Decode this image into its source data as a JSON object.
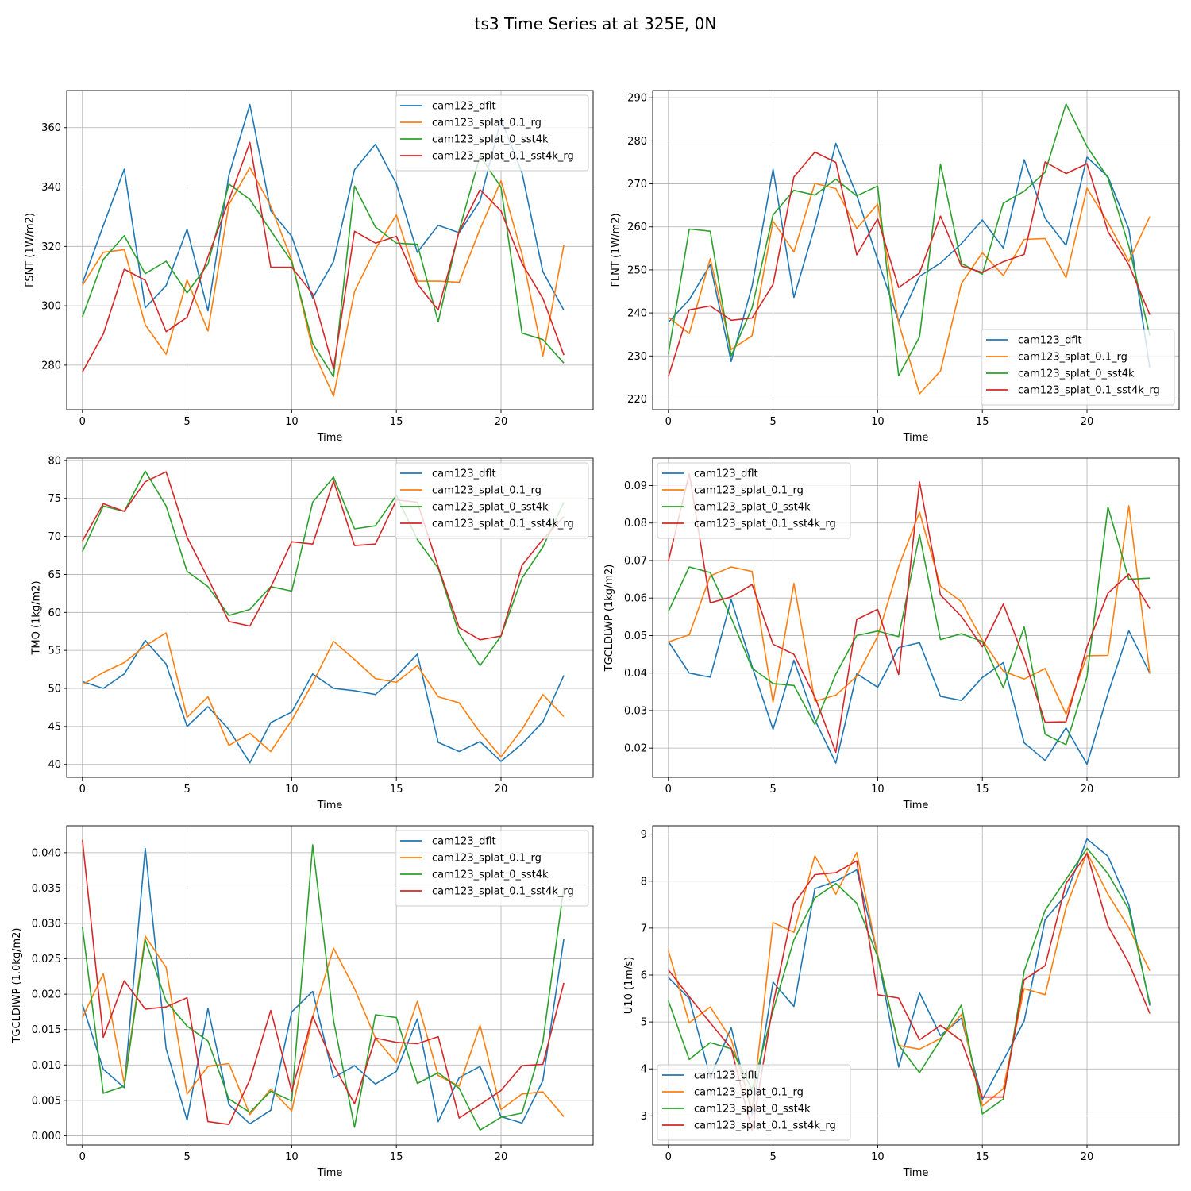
{
  "title": "ts3 Time Series at at 325E, 0N",
  "colors": {
    "cam123_dflt": "#1f77b4",
    "cam123_splat_0.1_rg": "#ff7f0e",
    "cam123_splat_0_sst4k": "#2ca02c",
    "cam123_splat_0.1_sst4k_rg": "#d62728"
  },
  "chart_data": [
    {
      "type": "line",
      "xlabel": "Time",
      "ylabel": "FSNT (1W/m2)",
      "x": [
        0,
        1,
        2,
        3,
        4,
        5,
        6,
        7,
        8,
        9,
        10,
        11,
        12,
        13,
        14,
        15,
        16,
        17,
        18,
        19,
        20,
        21,
        22,
        23
      ],
      "xlim": [
        -0.75,
        24.4
      ],
      "ylim": [
        265.0,
        372.5
      ],
      "xticks": [
        0,
        5,
        10,
        15,
        20
      ],
      "xtick_labels": [
        "0",
        "5",
        "10",
        "15",
        "20"
      ],
      "yticks": [
        280,
        300,
        320,
        340,
        360
      ],
      "ytick_labels": [
        "280",
        "300",
        "320",
        "340",
        "360"
      ],
      "grid": true,
      "legend_position": "top-right",
      "series": [
        {
          "name": "cam123_dflt",
          "values": [
            307.6,
            327.0,
            346.0,
            299.3,
            306.8,
            325.8,
            298.3,
            344.0,
            367.8,
            332.0,
            323.4,
            302.6,
            314.9,
            345.8,
            354.4,
            341.1,
            318.0,
            327.1,
            324.6,
            335.3,
            362.8,
            344.8,
            311.5,
            298.5
          ]
        },
        {
          "name": "cam123_splat_0.1_rg",
          "values": [
            306.9,
            318.0,
            318.9,
            293.6,
            283.7,
            308.7,
            291.5,
            334.1,
            346.6,
            333.6,
            315.4,
            285.1,
            269.6,
            304.8,
            319.1,
            330.6,
            308.3,
            308.3,
            307.9,
            325.9,
            342.1,
            317.4,
            283.1,
            320.4
          ]
        },
        {
          "name": "cam123_splat_0_sst4k",
          "values": [
            296.3,
            315.6,
            323.6,
            310.8,
            315.0,
            304.3,
            314.0,
            341.0,
            335.8,
            325.3,
            314.9,
            287.3,
            276.1,
            340.3,
            326.5,
            321.1,
            320.7,
            294.6,
            325.4,
            350.5,
            339.9,
            290.8,
            288.6,
            280.7
          ]
        },
        {
          "name": "cam123_splat_0.1_sst4k_rg",
          "values": [
            277.7,
            290.5,
            312.3,
            308.6,
            291.3,
            296.1,
            316.5,
            335.5,
            355.0,
            313.0,
            313.0,
            304.0,
            278.8,
            325.1,
            321.1,
            323.4,
            307.3,
            298.6,
            325.0,
            339.1,
            331.9,
            314.3,
            302.5,
            283.4
          ]
        }
      ]
    },
    {
      "type": "line",
      "xlabel": "Time",
      "ylabel": "FLNT (1W/m2)",
      "x": [
        0,
        1,
        2,
        3,
        4,
        5,
        6,
        7,
        8,
        9,
        10,
        11,
        12,
        13,
        14,
        15,
        16,
        17,
        18,
        19,
        20,
        21,
        22,
        23
      ],
      "xlim": [
        -0.75,
        24.4
      ],
      "ylim": [
        217.5,
        291.7
      ],
      "xticks": [
        0,
        5,
        10,
        15,
        20
      ],
      "xtick_labels": [
        "0",
        "5",
        "10",
        "15",
        "20"
      ],
      "yticks": [
        220,
        230,
        240,
        250,
        260,
        270,
        280,
        290
      ],
      "ytick_labels": [
        "220",
        "230",
        "240",
        "250",
        "260",
        "270",
        "280",
        "290"
      ],
      "grid": true,
      "legend_position": "bottom-right",
      "series": [
        {
          "name": "cam123_dflt",
          "values": [
            237.8,
            243.1,
            251.2,
            228.7,
            246.2,
            273.4,
            243.6,
            260.2,
            279.4,
            267.4,
            252.3,
            238.0,
            248.5,
            251.6,
            256.1,
            261.6,
            255.1,
            275.6,
            262.0,
            255.7,
            276.2,
            271.7,
            259.5,
            227.2
          ]
        },
        {
          "name": "cam123_splat_0.1_rg",
          "values": [
            239.0,
            235.2,
            252.6,
            231.5,
            234.7,
            261.3,
            254.2,
            270.1,
            268.9,
            259.6,
            265.3,
            237.7,
            221.2,
            226.5,
            246.8,
            254.0,
            248.7,
            257.1,
            257.3,
            248.2,
            269.0,
            261.0,
            252.0,
            262.4
          ]
        },
        {
          "name": "cam123_splat_0_sst4k",
          "values": [
            230.5,
            259.5,
            259.0,
            230.0,
            241.2,
            262.8,
            268.5,
            267.4,
            271.1,
            267.2,
            269.5,
            225.4,
            234.4,
            274.6,
            251.5,
            249.0,
            265.5,
            268.3,
            272.7,
            288.6,
            278.7,
            271.4,
            255.5,
            234.7
          ]
        },
        {
          "name": "cam123_splat_0.1_sst4k_rg",
          "values": [
            225.2,
            240.7,
            241.6,
            238.3,
            238.8,
            246.6,
            271.6,
            277.4,
            275.0,
            253.5,
            261.9,
            245.9,
            249.3,
            262.5,
            250.9,
            249.4,
            251.9,
            253.6,
            275.1,
            272.4,
            274.7,
            258.9,
            251.2,
            239.6
          ]
        }
      ]
    },
    {
      "type": "line",
      "xlabel": "Time",
      "ylabel": "TMQ (1kg/m2)",
      "x": [
        0,
        1,
        2,
        3,
        4,
        5,
        6,
        7,
        8,
        9,
        10,
        11,
        12,
        13,
        14,
        15,
        16,
        17,
        18,
        19,
        20,
        21,
        22,
        23
      ],
      "xlim": [
        -0.75,
        24.4
      ],
      "ylim": [
        38.3,
        80.3
      ],
      "xticks": [
        0,
        5,
        10,
        15,
        20
      ],
      "xtick_labels": [
        "0",
        "5",
        "10",
        "15",
        "20"
      ],
      "yticks": [
        40,
        45,
        50,
        55,
        60,
        65,
        70,
        75,
        80
      ],
      "ytick_labels": [
        "40",
        "45",
        "50",
        "55",
        "60",
        "65",
        "70",
        "75",
        "80"
      ],
      "grid": true,
      "legend_position": "top-right",
      "series": [
        {
          "name": "cam123_dflt",
          "values": [
            50.9,
            50.0,
            51.9,
            56.3,
            53.2,
            45.0,
            47.6,
            44.6,
            40.2,
            45.5,
            46.9,
            51.9,
            50.0,
            49.7,
            49.2,
            51.6,
            54.5,
            42.9,
            41.7,
            43.0,
            40.4,
            42.7,
            45.6,
            51.7
          ]
        },
        {
          "name": "cam123_splat_0.1_rg",
          "values": [
            50.5,
            52.1,
            53.4,
            55.6,
            57.3,
            46.2,
            48.9,
            42.5,
            44.1,
            41.7,
            45.8,
            50.7,
            56.2,
            53.8,
            51.3,
            50.8,
            53.0,
            48.9,
            48.1,
            44.2,
            41.0,
            44.6,
            49.2,
            46.3
          ]
        },
        {
          "name": "cam123_splat_0_sst4k",
          "values": [
            68.0,
            74.0,
            73.3,
            78.6,
            74.0,
            65.4,
            63.4,
            59.6,
            60.4,
            63.4,
            62.8,
            74.5,
            77.8,
            71.0,
            71.4,
            75.4,
            69.6,
            65.8,
            57.2,
            53.0,
            56.9,
            64.5,
            68.6,
            74.5
          ]
        },
        {
          "name": "cam123_splat_0.1_sst4k_rg",
          "values": [
            69.4,
            74.3,
            73.3,
            77.2,
            78.5,
            69.9,
            64.5,
            58.8,
            58.2,
            63.3,
            69.3,
            69.0,
            77.3,
            68.8,
            69.0,
            74.8,
            74.5,
            66.0,
            58.0,
            56.4,
            56.9,
            66.2,
            69.6,
            72.6
          ]
        }
      ]
    },
    {
      "type": "line",
      "xlabel": "Time",
      "ylabel": "TGCLDLWP (1kg/m2)",
      "x": [
        0,
        1,
        2,
        3,
        4,
        5,
        6,
        7,
        8,
        9,
        10,
        11,
        12,
        13,
        14,
        15,
        16,
        17,
        18,
        19,
        20,
        21,
        22,
        23
      ],
      "xlim": [
        -0.75,
        24.4
      ],
      "ylim": [
        0.0122,
        0.0973
      ],
      "xticks": [
        0,
        5,
        10,
        15,
        20
      ],
      "xtick_labels": [
        "0",
        "5",
        "10",
        "15",
        "20"
      ],
      "yticks": [
        0.02,
        0.03,
        0.04,
        0.05,
        0.06,
        0.07,
        0.08,
        0.09
      ],
      "ytick_labels": [
        "0.02",
        "0.03",
        "0.04",
        "0.05",
        "0.06",
        "0.07",
        "0.08",
        "0.09"
      ],
      "grid": true,
      "legend_position": "top-left",
      "series": [
        {
          "name": "cam123_dflt",
          "values": [
            0.0484,
            0.04,
            0.0389,
            0.0596,
            0.0418,
            0.025,
            0.0434,
            0.0275,
            0.016,
            0.0398,
            0.0362,
            0.0468,
            0.0481,
            0.0338,
            0.0327,
            0.0388,
            0.0428,
            0.0214,
            0.0167,
            0.0254,
            0.0157,
            0.0345,
            0.0513,
            0.04
          ]
        },
        {
          "name": "cam123_splat_0.1_rg",
          "values": [
            0.0483,
            0.0502,
            0.0659,
            0.0683,
            0.0671,
            0.0322,
            0.0639,
            0.0325,
            0.0341,
            0.0391,
            0.0498,
            0.0684,
            0.0829,
            0.0632,
            0.059,
            0.0488,
            0.0405,
            0.0384,
            0.0412,
            0.029,
            0.0446,
            0.0447,
            0.0846,
            0.0398
          ]
        },
        {
          "name": "cam123_splat_0_sst4k",
          "values": [
            0.0564,
            0.0683,
            0.0668,
            0.0547,
            0.0413,
            0.0372,
            0.0367,
            0.0263,
            0.0397,
            0.05,
            0.0512,
            0.0497,
            0.0769,
            0.0489,
            0.0505,
            0.0484,
            0.0361,
            0.0523,
            0.0237,
            0.0209,
            0.039,
            0.0843,
            0.065,
            0.0653
          ]
        },
        {
          "name": "cam123_splat_0.1_sst4k_rg",
          "values": [
            0.0698,
            0.0932,
            0.0587,
            0.0603,
            0.0636,
            0.0477,
            0.045,
            0.0336,
            0.0189,
            0.0543,
            0.057,
            0.0396,
            0.091,
            0.0608,
            0.0551,
            0.047,
            0.0584,
            0.0439,
            0.0269,
            0.027,
            0.047,
            0.0613,
            0.0664,
            0.0572
          ]
        }
      ]
    },
    {
      "type": "line",
      "xlabel": "Time",
      "ylabel": "TGCLDIWP (1.0kg/m2)",
      "x": [
        0,
        1,
        2,
        3,
        4,
        5,
        6,
        7,
        8,
        9,
        10,
        11,
        12,
        13,
        14,
        15,
        16,
        17,
        18,
        19,
        20,
        21,
        22,
        23
      ],
      "xlim": [
        -0.75,
        24.4
      ],
      "ylim": [
        -0.0013,
        0.0438
      ],
      "xticks": [
        0,
        5,
        10,
        15,
        20
      ],
      "xtick_labels": [
        "0",
        "5",
        "10",
        "15",
        "20"
      ],
      "yticks": [
        0.0,
        0.005,
        0.01,
        0.015,
        0.02,
        0.025,
        0.03,
        0.035,
        0.04
      ],
      "ytick_labels": [
        "0.000",
        "0.005",
        "0.010",
        "0.015",
        "0.020",
        "0.025",
        "0.030",
        "0.035",
        "0.040"
      ],
      "grid": true,
      "legend_position": "top-right",
      "series": [
        {
          "name": "cam123_dflt",
          "values": [
            0.0185,
            0.0094,
            0.0068,
            0.0406,
            0.0123,
            0.0022,
            0.018,
            0.0044,
            0.0017,
            0.0036,
            0.0175,
            0.0204,
            0.0082,
            0.0099,
            0.0073,
            0.0091,
            0.0165,
            0.002,
            0.0082,
            0.0098,
            0.0027,
            0.0018,
            0.0078,
            0.0278
          ]
        },
        {
          "name": "cam123_splat_0.1_rg",
          "values": [
            0.0167,
            0.0229,
            0.0074,
            0.0282,
            0.0238,
            0.0059,
            0.0098,
            0.0102,
            0.003,
            0.0066,
            0.0035,
            0.0168,
            0.0265,
            0.0208,
            0.0138,
            0.0103,
            0.019,
            0.0085,
            0.007,
            0.0156,
            0.0037,
            0.0059,
            0.0062,
            0.0027
          ]
        },
        {
          "name": "cam123_splat_0_sst4k",
          "values": [
            0.0295,
            0.006,
            0.007,
            0.0277,
            0.019,
            0.0155,
            0.0134,
            0.0052,
            0.0033,
            0.0063,
            0.0049,
            0.0411,
            0.0163,
            0.0012,
            0.0171,
            0.0167,
            0.0074,
            0.0089,
            0.0067,
            0.0008,
            0.0026,
            0.0032,
            0.0133,
            0.0351
          ]
        },
        {
          "name": "cam123_splat_0.1_sst4k_rg",
          "values": [
            0.0418,
            0.0139,
            0.0219,
            0.0179,
            0.0182,
            0.0195,
            0.002,
            0.0016,
            0.0079,
            0.0177,
            0.0063,
            0.0169,
            0.01,
            0.0045,
            0.0138,
            0.0132,
            0.013,
            0.014,
            0.0025,
            0.0044,
            0.0064,
            0.0099,
            0.0101,
            0.0216
          ]
        }
      ]
    },
    {
      "type": "line",
      "xlabel": "Time",
      "ylabel": "U10 (1m/s)",
      "x": [
        0,
        1,
        2,
        3,
        4,
        5,
        6,
        7,
        8,
        9,
        10,
        11,
        12,
        13,
        14,
        15,
        16,
        17,
        18,
        19,
        20,
        21,
        22,
        23
      ],
      "xlim": [
        -0.75,
        24.4
      ],
      "ylim": [
        2.38,
        9.18
      ],
      "xticks": [
        0,
        5,
        10,
        15,
        20
      ],
      "xtick_labels": [
        "0",
        "5",
        "10",
        "15",
        "20"
      ],
      "yticks": [
        3,
        4,
        5,
        6,
        7,
        8,
        9
      ],
      "ytick_labels": [
        "3",
        "4",
        "5",
        "6",
        "7",
        "8",
        "9"
      ],
      "grid": true,
      "legend_position": "bottom-left",
      "series": [
        {
          "name": "cam123_dflt",
          "values": [
            5.95,
            5.5,
            3.82,
            4.88,
            3.02,
            5.85,
            5.33,
            7.84,
            8.0,
            8.24,
            6.43,
            4.04,
            5.62,
            4.71,
            5.08,
            3.35,
            4.18,
            5.02,
            7.18,
            7.71,
            8.9,
            8.53,
            7.5,
            5.35
          ]
        },
        {
          "name": "cam123_splat_0.1_rg",
          "values": [
            6.52,
            4.98,
            5.32,
            4.63,
            3.12,
            7.12,
            6.91,
            8.54,
            7.72,
            8.61,
            6.42,
            4.5,
            4.42,
            4.65,
            5.16,
            3.21,
            3.58,
            5.71,
            5.58,
            7.44,
            8.61,
            7.72,
            7.01,
            6.09
          ]
        },
        {
          "name": "cam123_splat_0_sst4k",
          "values": [
            5.45,
            4.2,
            4.56,
            4.43,
            3.56,
            5.24,
            6.75,
            7.64,
            7.95,
            7.53,
            6.39,
            4.51,
            3.92,
            4.62,
            5.36,
            3.04,
            3.36,
            6.08,
            7.38,
            8.04,
            8.7,
            8.16,
            7.4,
            5.39
          ]
        },
        {
          "name": "cam123_splat_0.1_sst4k_rg",
          "values": [
            6.11,
            5.54,
            4.98,
            4.44,
            2.68,
            5.37,
            7.52,
            8.14,
            8.18,
            8.43,
            5.58,
            5.51,
            4.62,
            4.93,
            4.6,
            3.4,
            3.4,
            5.9,
            6.2,
            7.95,
            8.59,
            7.05,
            6.26,
            5.18
          ]
        }
      ]
    }
  ]
}
